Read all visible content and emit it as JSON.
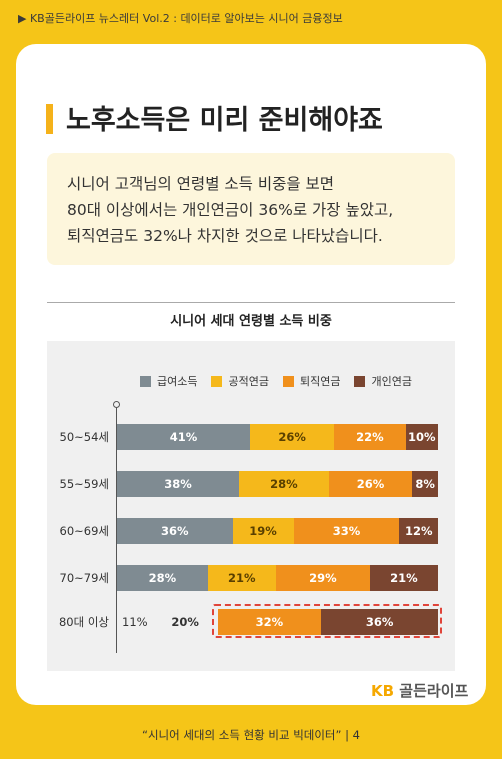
{
  "header": {
    "topline": "▶ KB골든라이프 뉴스레터 Vol.2 : 데이터로 알아보는 시니어 금융정보"
  },
  "headline": "노후소득은 미리 준비해야죠",
  "note": {
    "lines": [
      "시니어 고객님의 연령별 소득 비중을 보면",
      "80대 이상에서는 개인연금이 36%로 가장 높았고,",
      "퇴직연금도 32%나 차지한 것으로 나타났습니다."
    ]
  },
  "chart_data": {
    "type": "bar",
    "orientation": "horizontal",
    "stacked": true,
    "title": "시니어 세대 연령별 소득 비중",
    "categories": [
      "50~54세",
      "55~59세",
      "60~69세",
      "70~79세",
      "80대 이상"
    ],
    "series": [
      {
        "name": "급여소득",
        "values": [
          41,
          38,
          36,
          28,
          11
        ],
        "color": "#7f8b92"
      },
      {
        "name": "공적연금",
        "values": [
          26,
          28,
          19,
          21,
          20
        ],
        "color": "#f5b81b"
      },
      {
        "name": "퇴직연금",
        "values": [
          22,
          26,
          33,
          29,
          32
        ],
        "color": "#f0901c"
      },
      {
        "name": "개인연금",
        "values": [
          10,
          8,
          12,
          21,
          36
        ],
        "color": "#7a4530"
      }
    ],
    "unit": "%",
    "legend_position": "top",
    "highlight": {
      "category": "80대 이상",
      "series": [
        "퇴직연금",
        "개인연금"
      ],
      "color": "#e0443a"
    }
  },
  "brand": {
    "kb": "KB",
    "name": "골든라이프"
  },
  "footer": {
    "text": "“시니어 세대의 소득 현황 비교 빅데이터”  |  4"
  }
}
